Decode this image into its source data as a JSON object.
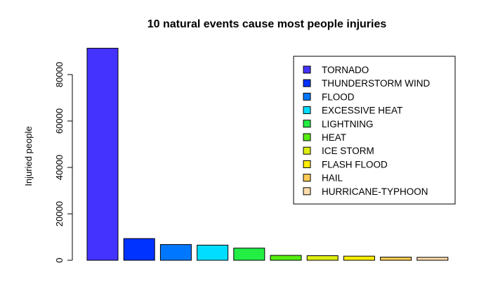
{
  "chart_data": {
    "type": "bar",
    "title": "10 natural events cause most people injuries",
    "xlabel": "",
    "ylabel": "Injuried people",
    "ylim": [
      0,
      92000
    ],
    "yticks": [
      0,
      20000,
      40000,
      60000,
      80000
    ],
    "legend_position": "top-right",
    "grid": false,
    "categories": [
      "TORNADO",
      "THUNDERSTORM WIND",
      "FLOOD",
      "EXCESSIVE HEAT",
      "LIGHTNING",
      "HEAT",
      "ICE STORM",
      "FLASH FLOOD",
      "HAIL",
      "HURRICANE-TYPHOON"
    ],
    "values": [
      91346,
      9353,
      6789,
      6525,
      5230,
      2100,
      1975,
      1777,
      1361,
      1275
    ],
    "colors": [
      "#4433FF",
      "#0033FF",
      "#0077FF",
      "#00DDFF",
      "#22EE44",
      "#55EE11",
      "#DDEE11",
      "#FFEE00",
      "#FFCC55",
      "#FFDDAA"
    ]
  }
}
